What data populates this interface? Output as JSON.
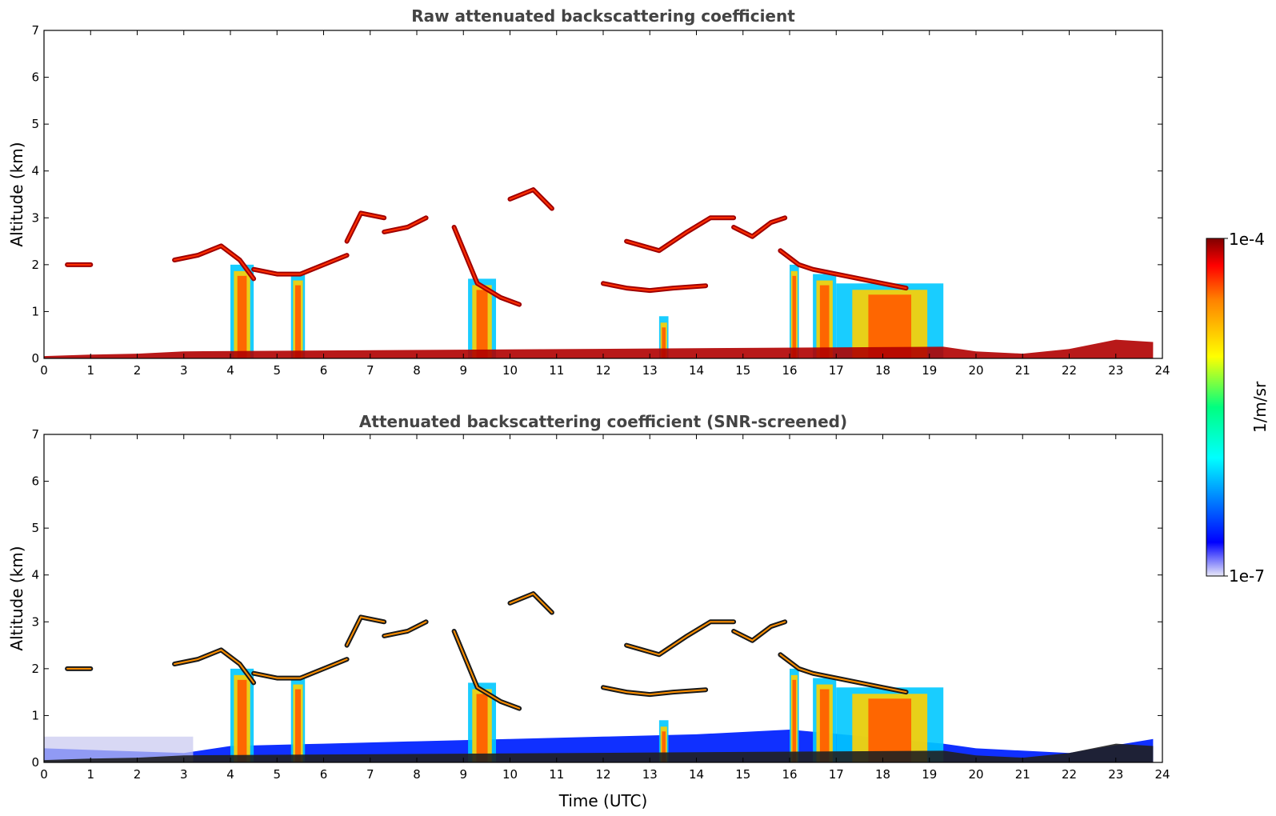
{
  "chart_data": [
    {
      "type": "heatmap",
      "title": "Raw attenuated backscattering coefficient",
      "xlabel": "",
      "ylabel": "Altitude (km)",
      "xlim": [
        0,
        24
      ],
      "ylim": [
        0,
        7
      ],
      "xticks": [
        "0",
        "1",
        "2",
        "3",
        "4",
        "5",
        "6",
        "7",
        "8",
        "9",
        "10",
        "11",
        "12",
        "13",
        "14",
        "15",
        "16",
        "17",
        "18",
        "19",
        "20",
        "21",
        "22",
        "23",
        "24"
      ],
      "yticks": [
        "0",
        "1",
        "2",
        "3",
        "4",
        "5",
        "6",
        "7"
      ],
      "screened": false,
      "features": {
        "surface_layer": [
          [
            0,
            0.05
          ],
          [
            1,
            0.08
          ],
          [
            2,
            0.1
          ],
          [
            3,
            0.15
          ],
          [
            19.3,
            0.25
          ],
          [
            20,
            0.15
          ],
          [
            21,
            0.1
          ],
          [
            22,
            0.2
          ],
          [
            23,
            0.4
          ],
          [
            23.8,
            0.35
          ]
        ],
        "cloud_layers": [
          {
            "x": [
              0.5,
              1.0
            ],
            "y": [
              2.0,
              2.0
            ]
          },
          {
            "x": [
              2.8,
              3.3,
              3.8,
              4.2,
              4.5
            ],
            "y": [
              2.1,
              2.2,
              2.4,
              2.1,
              1.7
            ]
          },
          {
            "x": [
              4.5,
              5.0,
              5.5,
              6.0,
              6.5
            ],
            "y": [
              1.9,
              1.8,
              1.8,
              2.0,
              2.2
            ]
          },
          {
            "x": [
              6.5,
              6.8,
              7.3
            ],
            "y": [
              2.5,
              3.1,
              3.0
            ]
          },
          {
            "x": [
              7.3,
              7.8,
              8.2
            ],
            "y": [
              2.7,
              2.8,
              3.0
            ]
          },
          {
            "x": [
              8.8,
              9.3,
              9.8,
              10.2
            ],
            "y": [
              2.8,
              1.6,
              1.3,
              1.15
            ]
          },
          {
            "x": [
              10.0,
              10.5,
              10.9
            ],
            "y": [
              3.4,
              3.6,
              3.2
            ]
          },
          {
            "x": [
              12.0,
              12.5,
              13.0,
              13.5,
              14.2
            ],
            "y": [
              1.6,
              1.5,
              1.45,
              1.5,
              1.55
            ]
          },
          {
            "x": [
              12.5,
              13.2,
              13.8,
              14.3,
              14.8
            ],
            "y": [
              2.5,
              2.3,
              2.7,
              3.0,
              3.0
            ]
          },
          {
            "x": [
              14.8,
              15.2,
              15.6,
              15.9
            ],
            "y": [
              2.8,
              2.6,
              2.9,
              3.0
            ]
          },
          {
            "x": [
              15.8,
              16.2,
              16.5,
              17.0,
              17.5,
              18.0,
              18.5
            ],
            "y": [
              2.3,
              2.0,
              1.9,
              1.8,
              1.7,
              1.6,
              1.5
            ]
          }
        ],
        "precipitation_columns": [
          {
            "x": [
              4.0,
              4.5
            ],
            "top": 2.0
          },
          {
            "x": [
              5.3,
              5.6
            ],
            "top": 1.8
          },
          {
            "x": [
              9.1,
              9.7
            ],
            "top": 1.7
          },
          {
            "x": [
              13.2,
              13.4
            ],
            "top": 0.9
          },
          {
            "x": [
              16.0,
              16.2
            ],
            "top": 2.0
          },
          {
            "x": [
              16.5,
              17.0
            ],
            "top": 1.8
          },
          {
            "x": [
              17.0,
              19.3
            ],
            "top": 1.6
          }
        ]
      }
    },
    {
      "type": "heatmap",
      "title": "Attenuated backscattering coefficient (SNR-screened)",
      "xlabel": "Time (UTC)",
      "ylabel": "Altitude (km)",
      "xlim": [
        0,
        24
      ],
      "ylim": [
        0,
        7
      ],
      "xticks": [
        "0",
        "1",
        "2",
        "3",
        "4",
        "5",
        "6",
        "7",
        "8",
        "9",
        "10",
        "11",
        "12",
        "13",
        "14",
        "15",
        "16",
        "17",
        "18",
        "19",
        "20",
        "21",
        "22",
        "23",
        "24"
      ],
      "yticks": [
        "0",
        "1",
        "2",
        "3",
        "4",
        "5",
        "6",
        "7"
      ],
      "screened": true
    }
  ],
  "colorbar": {
    "label": "1/m/sr",
    "max_label": "1e-4",
    "min_label": "1e-7",
    "scale": "log",
    "colormap": "jet",
    "stops": [
      "#e8e8f8",
      "#0000ff",
      "#00ffff",
      "#00ff80",
      "#ffff00",
      "#ff8000",
      "#ff0000",
      "#800000"
    ]
  },
  "colors": {
    "title_gray": "#444444",
    "axis": "#000000",
    "background": "#ffffff"
  }
}
